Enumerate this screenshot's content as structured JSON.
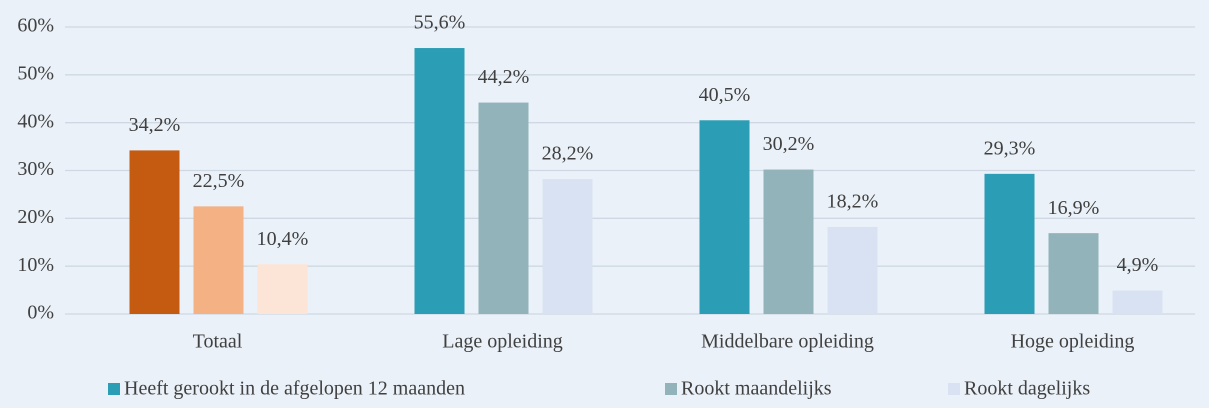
{
  "chart_data": {
    "type": "bar",
    "categories": [
      "Totaal",
      "Lage opleiding",
      "Middelbare opleiding",
      "Hoge opleiding"
    ],
    "series": [
      {
        "name": "Heeft gerookt in de afgelopen 12 maanden",
        "color": "#2b9db4",
        "colors": [
          "#c55a11",
          "#2b9db4",
          "#2b9db4",
          "#2b9db4"
        ],
        "values": [
          34.2,
          55.6,
          40.5,
          29.3
        ],
        "value_labels": [
          "34,2%",
          "55,6%",
          "40,5%",
          "29,3%"
        ]
      },
      {
        "name": "Rookt maandelijks",
        "color": "#93b3bb",
        "colors": [
          "#f4b183",
          "#93b3bb",
          "#93b3bb",
          "#93b3bb"
        ],
        "values": [
          22.5,
          44.2,
          30.2,
          16.9
        ],
        "value_labels": [
          "22,5%",
          "44,2%",
          "30,2%",
          "16,9%"
        ]
      },
      {
        "name": "Rookt dagelijks",
        "color": "#d9e2f3",
        "colors": [
          "#fce4d6",
          "#d9e2f3",
          "#d9e2f3",
          "#d9e2f3"
        ],
        "values": [
          10.4,
          28.2,
          18.2,
          4.9
        ],
        "value_labels": [
          "10,4%",
          "28,2%",
          "18,2%",
          "4,9%"
        ]
      }
    ],
    "ylim": [
      0,
      60
    ],
    "yticks": [
      {
        "value": 0,
        "label": "0%"
      },
      {
        "value": 10,
        "label": "10%"
      },
      {
        "value": 20,
        "label": "20%"
      },
      {
        "value": 30,
        "label": "30%"
      },
      {
        "value": 40,
        "label": "40%"
      },
      {
        "value": 50,
        "label": "50%"
      },
      {
        "value": 60,
        "label": "60%"
      }
    ],
    "grid": true,
    "legend": "bottom"
  }
}
